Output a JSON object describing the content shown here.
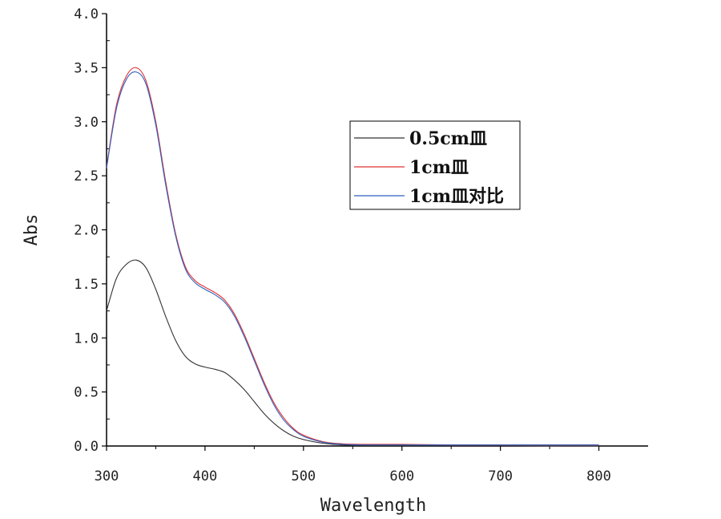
{
  "chart_data": {
    "type": "line",
    "xlabel": "Wavelength",
    "ylabel": "Abs",
    "xlim": [
      300,
      850
    ],
    "ylim": [
      0,
      4.0
    ],
    "xticks": [
      300,
      400,
      500,
      600,
      700,
      800
    ],
    "xtick_labels": [
      "300",
      "400",
      "500",
      "600",
      "700",
      "800"
    ],
    "yticks": [
      0,
      0.5,
      1.0,
      1.5,
      2.0,
      2.5,
      3.0,
      3.5,
      4.0
    ],
    "ytick_labels": [
      "0.0",
      "0.5",
      "1.0",
      "1.5",
      "2.0",
      "2.5",
      "3.0",
      "3.5",
      "4.0"
    ],
    "legend_position": "upper-right-center",
    "grid": false,
    "series": [
      {
        "name": "0.5cm皿",
        "color": "#333333",
        "x": [
          300,
          310,
          320,
          330,
          340,
          350,
          360,
          370,
          380,
          390,
          400,
          410,
          420,
          430,
          440,
          450,
          460,
          470,
          480,
          490,
          500,
          520,
          540,
          560,
          600,
          650,
          700,
          750,
          800
        ],
        "y": [
          1.25,
          1.55,
          1.68,
          1.72,
          1.65,
          1.45,
          1.2,
          0.98,
          0.83,
          0.76,
          0.73,
          0.71,
          0.68,
          0.61,
          0.52,
          0.41,
          0.3,
          0.21,
          0.14,
          0.09,
          0.06,
          0.025,
          0.01,
          0.005,
          0.005,
          0.005,
          0.005,
          0.0,
          0.0
        ]
      },
      {
        "name": "1cm皿",
        "color": "#e03030",
        "x": [
          300,
          310,
          320,
          330,
          340,
          350,
          360,
          370,
          380,
          390,
          400,
          410,
          420,
          430,
          440,
          450,
          460,
          470,
          480,
          490,
          500,
          520,
          540,
          560,
          600,
          650,
          700,
          750,
          800
        ],
        "y": [
          2.58,
          3.15,
          3.42,
          3.5,
          3.38,
          3.0,
          2.45,
          1.97,
          1.66,
          1.53,
          1.47,
          1.42,
          1.35,
          1.22,
          1.03,
          0.81,
          0.59,
          0.4,
          0.26,
          0.16,
          0.1,
          0.04,
          0.02,
          0.015,
          0.015,
          0.01,
          0.01,
          0.01,
          0.01
        ]
      },
      {
        "name": "1cm皿对比",
        "color": "#3060c0",
        "x": [
          300,
          310,
          320,
          330,
          340,
          350,
          360,
          370,
          380,
          390,
          400,
          410,
          420,
          430,
          440,
          450,
          460,
          470,
          480,
          490,
          500,
          520,
          540,
          560,
          600,
          650,
          700,
          750,
          800
        ],
        "y": [
          2.57,
          3.12,
          3.39,
          3.46,
          3.35,
          2.97,
          2.42,
          1.95,
          1.64,
          1.51,
          1.45,
          1.4,
          1.33,
          1.2,
          1.01,
          0.79,
          0.57,
          0.38,
          0.24,
          0.15,
          0.09,
          0.035,
          0.015,
          0.01,
          0.01,
          0.01,
          0.01,
          0.01,
          0.01
        ]
      }
    ]
  }
}
